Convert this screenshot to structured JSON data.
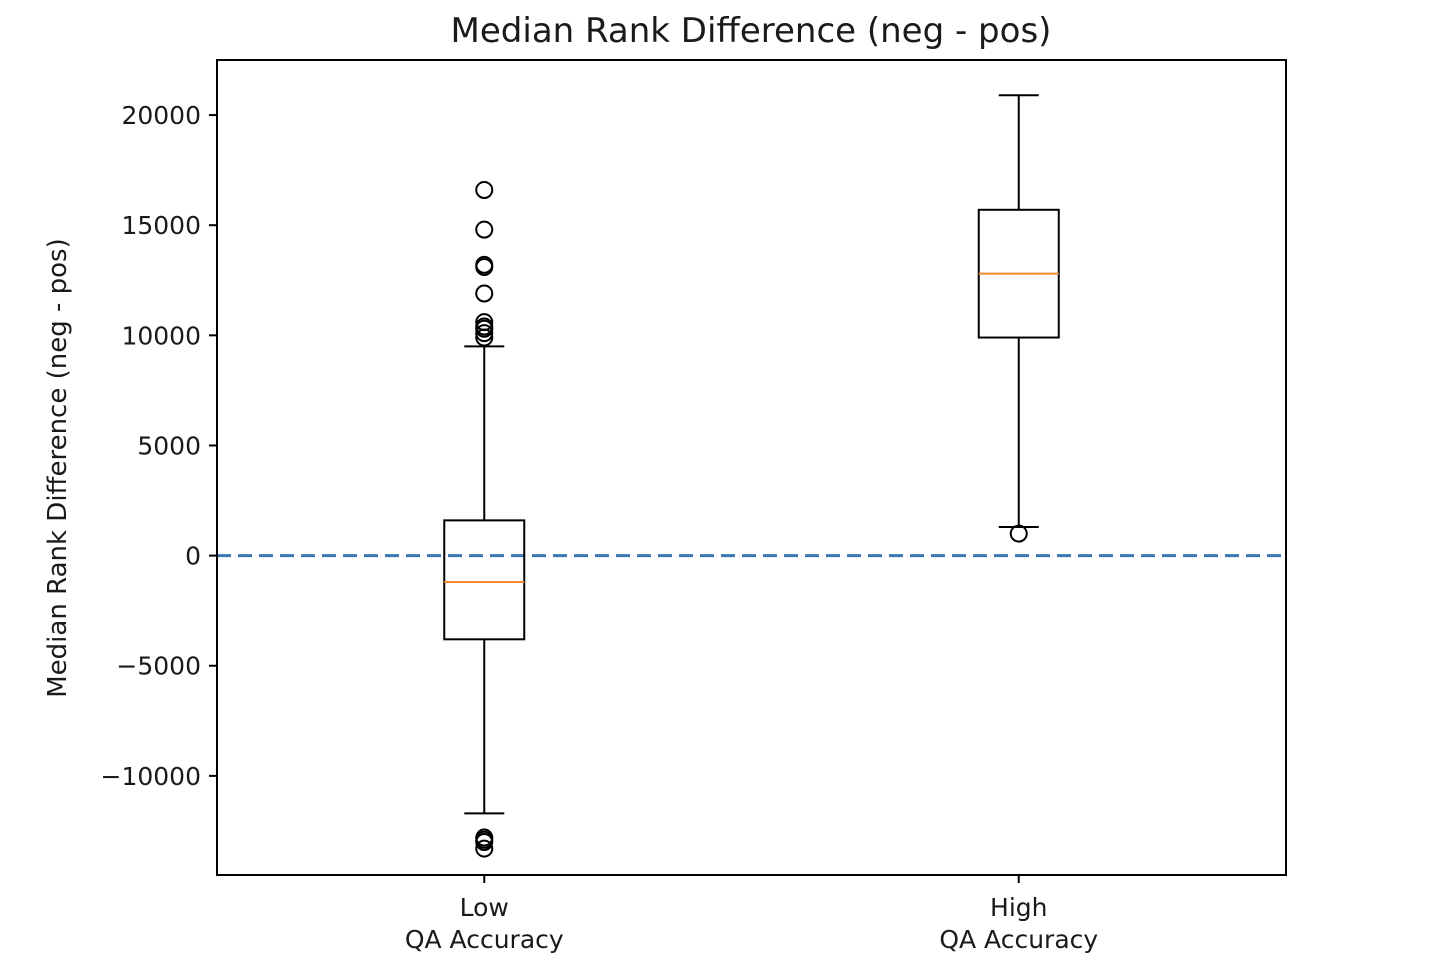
{
  "chart_data": {
    "type": "box",
    "title": "Median Rank Difference (neg - pos)",
    "xlabel": "",
    "ylabel": "Median Rank Difference (neg - pos)",
    "ylim": [
      -14500,
      22500
    ],
    "yticks": [
      {
        "value": 20000,
        "label": "20000"
      },
      {
        "value": 15000,
        "label": "15000"
      },
      {
        "value": 10000,
        "label": "10000"
      },
      {
        "value": 5000,
        "label": "5000"
      },
      {
        "value": 0,
        "label": "0"
      },
      {
        "value": -5000,
        "label": "−5000"
      },
      {
        "value": -10000,
        "label": "−10000"
      }
    ],
    "reference_line": {
      "value": 0,
      "style": "dashed",
      "color": "#3a78b5"
    },
    "colors": {
      "box": "#000000",
      "median": "#f28b30",
      "reference": "#3a78b5"
    },
    "grid": false,
    "boxes": [
      {
        "label_line1": "Low",
        "label_line2": "QA Accuracy",
        "whisker_low": -11700,
        "q1": -3800,
        "median": -1200,
        "q3": 1600,
        "whisker_high": 9500,
        "outliers": [
          16600,
          14800,
          13200,
          13100,
          11900,
          10600,
          10400,
          10300,
          10100,
          9900,
          -12800,
          -12900,
          -13000,
          -13300
        ]
      },
      {
        "label_line1": "High",
        "label_line2": "QA Accuracy",
        "whisker_low": 1300,
        "q1": 9900,
        "median": 12800,
        "q3": 15700,
        "whisker_high": 20900,
        "outliers": [
          1000
        ]
      }
    ]
  }
}
